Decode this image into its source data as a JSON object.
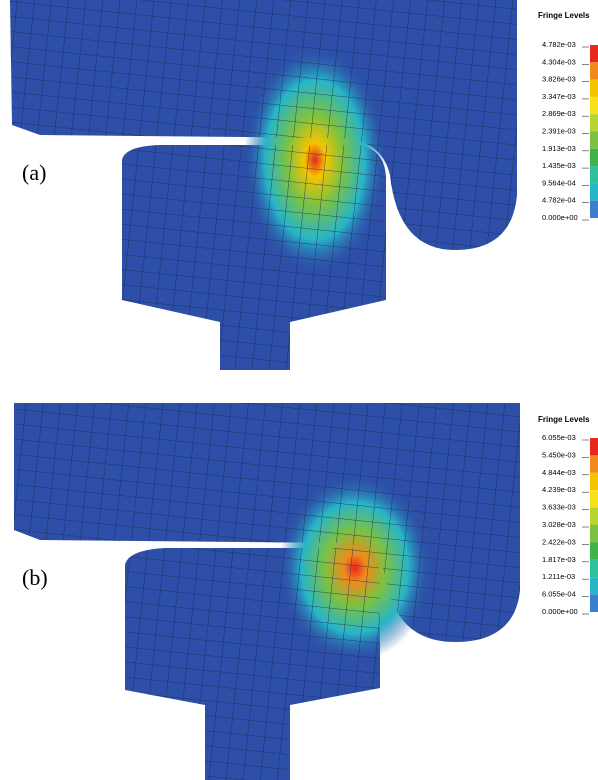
{
  "panels": [
    {
      "label": "(a)",
      "legend": {
        "title": "Fringe Levels",
        "levels": [
          "4.782e-03",
          "4.304e-03",
          "3.826e-03",
          "3.347e-03",
          "2.869e-03",
          "2.391e-03",
          "1.913e-03",
          "1.435e-03",
          "9.564e-04",
          "4.782e-04",
          "0.000e+00"
        ]
      }
    },
    {
      "label": "(b)",
      "legend": {
        "title": "Fringe Levels",
        "levels": [
          "6.055e-03",
          "5.450e-03",
          "4.844e-03",
          "4.239e-03",
          "3.633e-03",
          "3.028e-03",
          "2.422e-03",
          "1.817e-03",
          "1.211e-03",
          "6.055e-04",
          "0.000e+00"
        ]
      }
    }
  ]
}
